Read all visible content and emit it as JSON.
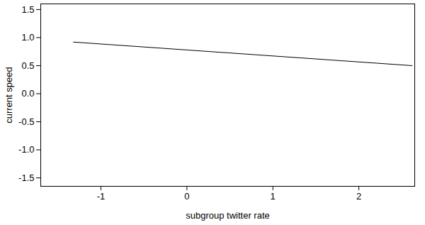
{
  "chart_data": {
    "type": "line",
    "x_label": "subgroup twitter rate",
    "y_label": "current speed",
    "x": [
      -1.32,
      2.62
    ],
    "values": [
      0.92,
      0.5
    ],
    "color": "#000000",
    "xlim": [
      -1.7,
      2.65
    ],
    "xticks": [
      -1,
      0,
      1,
      2
    ],
    "ylim": [
      -1.65,
      1.6
    ],
    "yticks": [
      -1.5,
      {
        "value": -1,
        "label": "-1.0"
      },
      -0.5,
      {
        "value": 0,
        "label": "0.0"
      },
      0.5,
      {
        "value": 1,
        "label": "1.0"
      },
      1.5
    ],
    "grid": false
  }
}
